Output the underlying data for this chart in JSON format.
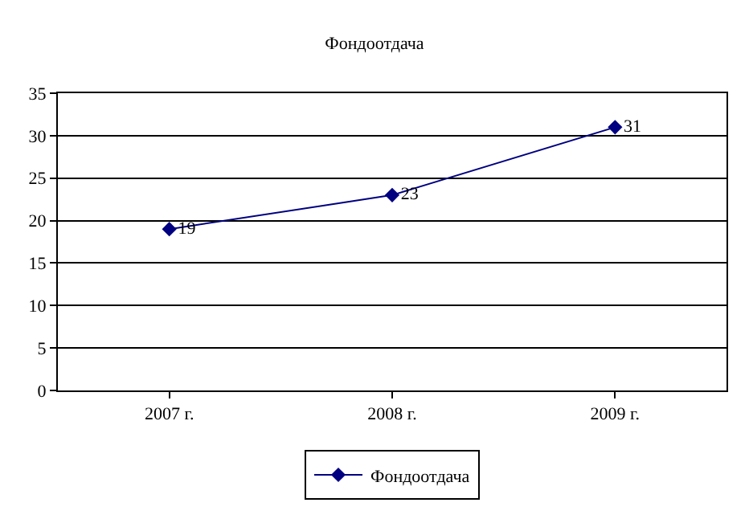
{
  "chart_data": {
    "type": "line",
    "title": "Фондоотдача",
    "categories": [
      "2007 г.",
      "2008 г.",
      "2009 г."
    ],
    "series": [
      {
        "name": "Фондоотдача",
        "color": "#000080",
        "values": [
          19,
          23,
          31
        ]
      }
    ],
    "ylim": [
      0,
      35
    ],
    "yticks": [
      0,
      5,
      10,
      15,
      20,
      25,
      30,
      35
    ],
    "grid": "y",
    "legend": "bottom",
    "marker": "diamond",
    "line_style": "solid",
    "data_labels": true
  }
}
